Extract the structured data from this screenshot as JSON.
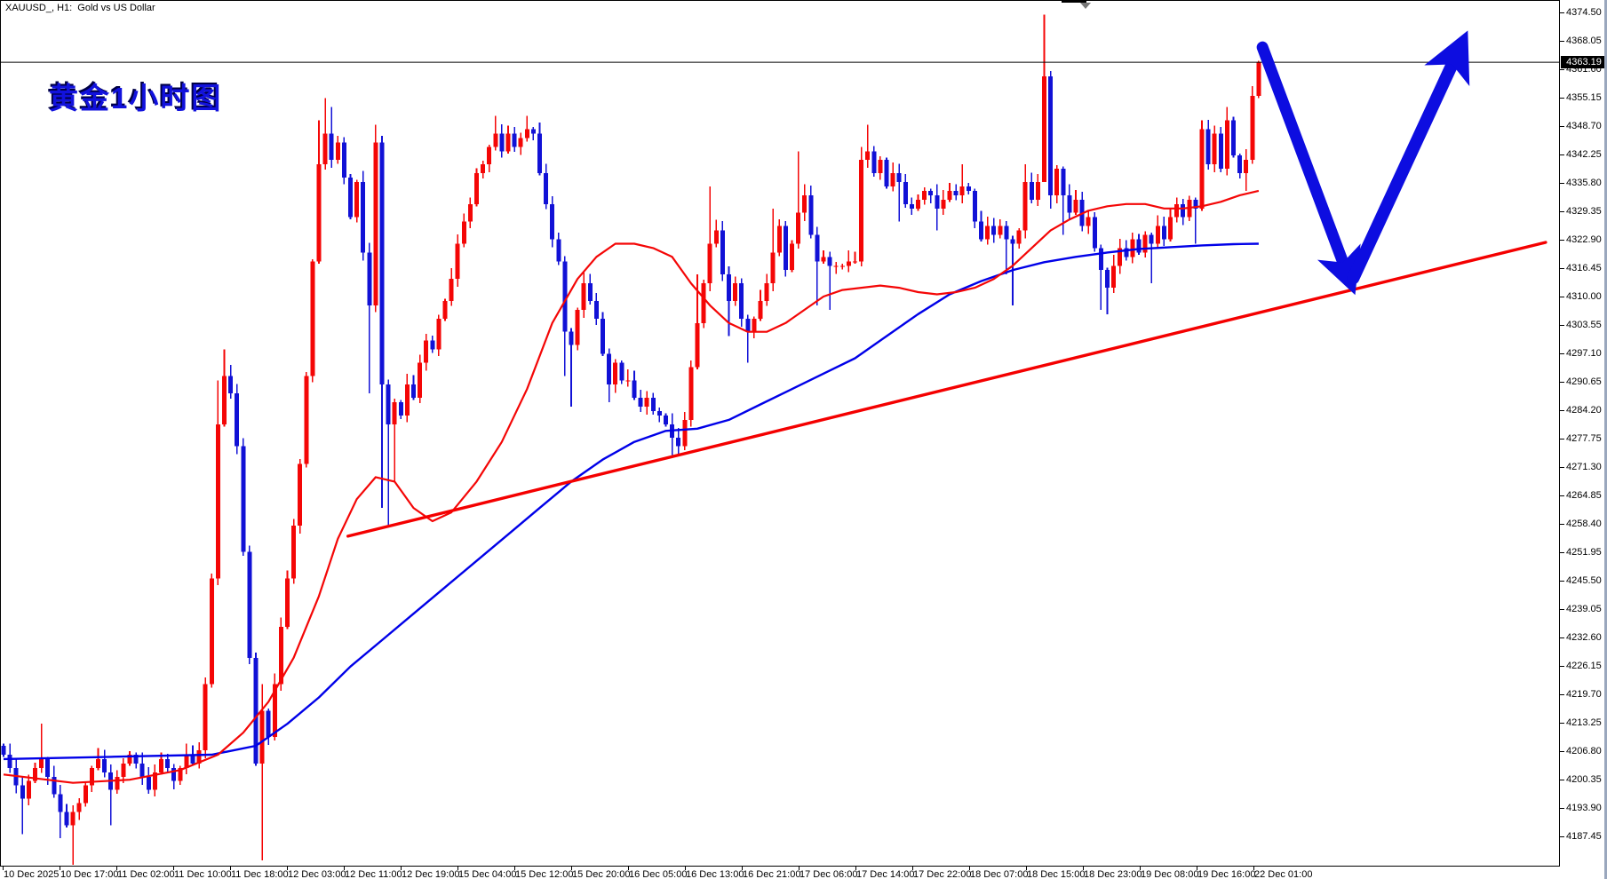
{
  "window": {
    "symbol_line": "XAUUSD_, H1:  Gold vs US Dollar",
    "overlay_title": "黄金1小时图"
  },
  "price_scale": {
    "labels": [
      "4374.50",
      "4368.05",
      "4361.60",
      "4355.15",
      "4348.70",
      "4342.25",
      "4335.80",
      "4329.35",
      "4322.90",
      "4316.45",
      "4310.00",
      "4303.55",
      "4297.10",
      "4290.65",
      "4284.20",
      "4277.75",
      "4271.30",
      "4264.85",
      "4258.40",
      "4251.95",
      "4245.50",
      "4239.05",
      "4232.60",
      "4226.15",
      "4219.70",
      "4213.25",
      "4206.80",
      "4200.35",
      "4193.90",
      "4187.45"
    ],
    "current_price": "4363.19"
  },
  "time_scale": {
    "labels": [
      "10 Dec 2025",
      "10 Dec 17:00",
      "11 Dec 02:00",
      "11 Dec 10:00",
      "11 Dec 18:00",
      "12 Dec 03:00",
      "12 Dec 11:00",
      "12 Dec 19:00",
      "15 Dec 04:00",
      "15 Dec 12:00",
      "15 Dec 20:00",
      "16 Dec 05:00",
      "16 Dec 13:00",
      "16 Dec 21:00",
      "17 Dec 06:00",
      "17 Dec 14:00",
      "17 Dec 22:00",
      "18 Dec 07:00",
      "18 Dec 15:00",
      "18 Dec 23:00",
      "19 Dec 08:00",
      "19 Dec 16:00",
      "22 Dec 01:00"
    ]
  },
  "chart_data": {
    "type": "candlestick",
    "symbol": "XAUUSD",
    "timeframe": "H1",
    "title": "Gold vs US Dollar",
    "ylim": [
      4180.8,
      4377.3
    ],
    "price_step": 6.45,
    "grid": false,
    "last_price": 4363.19,
    "horizontal_line_price": 4363.19,
    "first_open": 4208,
    "closes": [
      4206,
      4203,
      4199,
      4196,
      4200,
      4203,
      4205,
      4201,
      4197,
      4193,
      4190,
      4193,
      4195,
      4199,
      4203,
      4205,
      4202,
      4198,
      4201,
      4204,
      4206,
      4204,
      4201,
      4198,
      4202,
      4205,
      4203,
      4200,
      4203,
      4206,
      4204,
      4207,
      4222,
      4246,
      4281,
      4292,
      4288,
      4276,
      4252,
      4228,
      4204,
      4216,
      4210,
      4222,
      4235,
      4246,
      4258,
      4272,
      4292,
      4318,
      4340,
      4347,
      4341,
      4345,
      4337,
      4328,
      4336,
      4320,
      4308,
      4345,
      4290,
      4281,
      4286,
      4283,
      4290,
      4287,
      4295,
      4300,
      4298,
      4305,
      4309,
      4314,
      4322,
      4327,
      4331,
      4338,
      4340,
      4344,
      4347,
      4343,
      4347,
      4344,
      4346,
      4348,
      4347,
      4338,
      4331,
      4323,
      4318,
      4302,
      4299,
      4307,
      4313,
      4309,
      4305,
      4297,
      4290,
      4295,
      4291,
      4291,
      4287,
      4285,
      4287,
      4284,
      4283,
      4281,
      4278,
      4276,
      4282,
      4294,
      4304,
      4313,
      4322,
      4325,
      4315,
      4309,
      4313,
      4305,
      4302,
      4305,
      4309,
      4313,
      4320,
      4326,
      4316,
      4322,
      4329,
      4333,
      4324,
      4318,
      4319,
      4317,
      4317,
      4317,
      4318,
      4318,
      4341,
      4343,
      4338,
      4341,
      4335,
      4338,
      4336,
      4331,
      4330,
      4332,
      4334,
      4333,
      4330,
      4332,
      4334,
      4333,
      4335,
      4334,
      4327,
      4323,
      4326,
      4324,
      4326,
      4323,
      4322,
      4325,
      4336,
      4332,
      4336,
      4360,
      4333,
      4339,
      4333,
      4329,
      4332,
      4326,
      4328,
      4321,
      4316,
      4312,
      4317,
      4321,
      4319,
      4323,
      4320,
      4324,
      4322,
      4326,
      4323,
      4328,
      4331,
      4328,
      4332,
      4330,
      4348,
      4340,
      4347,
      4339,
      4350,
      4342,
      4338,
      4341,
      4355.6,
      4363.19
    ],
    "wicks": {
      "3": [
        null,
        4188
      ],
      "6": [
        4213,
        null
      ],
      "9": [
        null,
        4187
      ],
      "11": [
        null,
        4181
      ],
      "17": [
        null,
        4190
      ],
      "34": [
        4291,
        null
      ],
      "35": [
        4298,
        null
      ],
      "41": [
        4222,
        4182
      ],
      "50": [
        4350,
        null
      ],
      "51": [
        4355,
        null
      ],
      "52": [
        4353,
        null
      ],
      "58": [
        null,
        4288
      ],
      "59": [
        4349,
        null
      ],
      "60": [
        null,
        4262
      ],
      "61": [
        null,
        4258
      ],
      "62": [
        null,
        4268
      ],
      "78": [
        4351,
        null
      ],
      "83": [
        4351,
        null
      ],
      "89": [
        null,
        4292
      ],
      "90": [
        null,
        4285
      ],
      "96": [
        null,
        4286
      ],
      "106": [
        null,
        4274
      ],
      "110": [
        4315,
        null
      ],
      "112": [
        4335,
        null
      ],
      "115": [
        null,
        4301
      ],
      "118": [
        null,
        4295
      ],
      "122": [
        4330,
        null
      ],
      "126": [
        4343,
        null
      ],
      "129": [
        null,
        4308
      ],
      "131": [
        null,
        4307
      ],
      "136": [
        4344,
        null
      ],
      "137": [
        4349,
        null
      ],
      "142": [
        null,
        4327
      ],
      "148": [
        null,
        4325
      ],
      "152": [
        4340,
        null
      ],
      "159": [
        null,
        4315
      ],
      "160": [
        null,
        4308
      ],
      "162": [
        4340,
        null
      ],
      "165": [
        4374,
        4338
      ],
      "166": [
        null,
        4330
      ],
      "168": [
        null,
        4324
      ],
      "174": [
        null,
        4307
      ],
      "175": [
        null,
        4306
      ],
      "182": [
        null,
        4313
      ],
      "189": [
        null,
        4322
      ],
      "190": [
        4350,
        null
      ],
      "194": [
        4353,
        null
      ],
      "197": [
        null,
        4334
      ],
      "199": [
        4363.5,
        4355
      ]
    },
    "indicators": {
      "ma_fast_red": [
        [
          0,
          4201.5
        ],
        [
          11,
          4199.6
        ],
        [
          20,
          4200.3
        ],
        [
          28,
          4202.5
        ],
        [
          34,
          4206
        ],
        [
          38,
          4211
        ],
        [
          42,
          4218
        ],
        [
          46,
          4228
        ],
        [
          50,
          4242
        ],
        [
          53,
          4255
        ],
        [
          56,
          4264
        ],
        [
          59,
          4269
        ],
        [
          62,
          4268
        ],
        [
          65,
          4262
        ],
        [
          68,
          4259
        ],
        [
          71,
          4261
        ],
        [
          75,
          4268
        ],
        [
          79,
          4277
        ],
        [
          83,
          4289
        ],
        [
          87,
          4304
        ],
        [
          91,
          4314
        ],
        [
          94,
          4319
        ],
        [
          97,
          4322
        ],
        [
          100,
          4322
        ],
        [
          103,
          4321
        ],
        [
          106,
          4319
        ],
        [
          109,
          4313
        ],
        [
          112,
          4308
        ],
        [
          115,
          4304
        ],
        [
          118,
          4302
        ],
        [
          121,
          4302
        ],
        [
          124,
          4304
        ],
        [
          127,
          4307
        ],
        [
          130,
          4310
        ],
        [
          133,
          4311.5
        ],
        [
          136,
          4312
        ],
        [
          139,
          4312.5
        ],
        [
          142,
          4312
        ],
        [
          145,
          4311
        ],
        [
          148,
          4310.5
        ],
        [
          151,
          4311
        ],
        [
          154,
          4312
        ],
        [
          157,
          4314
        ],
        [
          160,
          4317
        ],
        [
          163,
          4321
        ],
        [
          166,
          4325
        ],
        [
          169,
          4327.5
        ],
        [
          172,
          4329.5
        ],
        [
          175,
          4330.5
        ],
        [
          178,
          4331
        ],
        [
          181,
          4331
        ],
        [
          184,
          4330
        ],
        [
          187,
          4330
        ],
        [
          190,
          4330.5
        ],
        [
          193,
          4331.5
        ],
        [
          196,
          4333
        ],
        [
          199,
          4334
        ]
      ],
      "ma_slow_blue": [
        [
          0,
          4205
        ],
        [
          17,
          4205.5
        ],
        [
          33,
          4206
        ],
        [
          40,
          4208
        ],
        [
          45,
          4213
        ],
        [
          50,
          4219
        ],
        [
          55,
          4226
        ],
        [
          60,
          4232
        ],
        [
          65,
          4238
        ],
        [
          70,
          4244
        ],
        [
          75,
          4250
        ],
        [
          80,
          4256
        ],
        [
          85,
          4262
        ],
        [
          90,
          4268
        ],
        [
          95,
          4273
        ],
        [
          100,
          4277
        ],
        [
          105,
          4279.5
        ],
        [
          110,
          4280
        ],
        [
          115,
          4282
        ],
        [
          120,
          4285.5
        ],
        [
          125,
          4289
        ],
        [
          130,
          4292.5
        ],
        [
          135,
          4296
        ],
        [
          140,
          4301
        ],
        [
          145,
          4306
        ],
        [
          150,
          4310.5
        ],
        [
          155,
          4313.5
        ],
        [
          160,
          4316
        ],
        [
          165,
          4317.8
        ],
        [
          170,
          4319
        ],
        [
          175,
          4320
        ],
        [
          180,
          4320.8
        ],
        [
          185,
          4321.2
        ],
        [
          190,
          4321.6
        ],
        [
          195,
          4321.9
        ],
        [
          199,
          4322
        ]
      ]
    },
    "trendline": {
      "points": [
        [
          54.6,
          4255.6
        ],
        [
          244.5,
          4322.3
        ]
      ],
      "width": 3.4
    },
    "annotations": [
      {
        "name": "down-v-arrow",
        "points": [
          [
            199.6,
            4366.6
          ],
          [
            213.4,
            4313.8
          ]
        ],
        "width": 13
      },
      {
        "name": "up-projection-arrow",
        "points": [
          [
            214.0,
            4314.2
          ],
          [
            231.0,
            4366.8
          ]
        ],
        "width": 14
      }
    ],
    "colors": {
      "bull": "#f40606",
      "bear": "#1111d6",
      "ma_fast": "#f40606",
      "ma_slow": "#0000e8",
      "trendline": "#f40000",
      "arrow": "#0d0de0",
      "hline": "#000000"
    }
  }
}
